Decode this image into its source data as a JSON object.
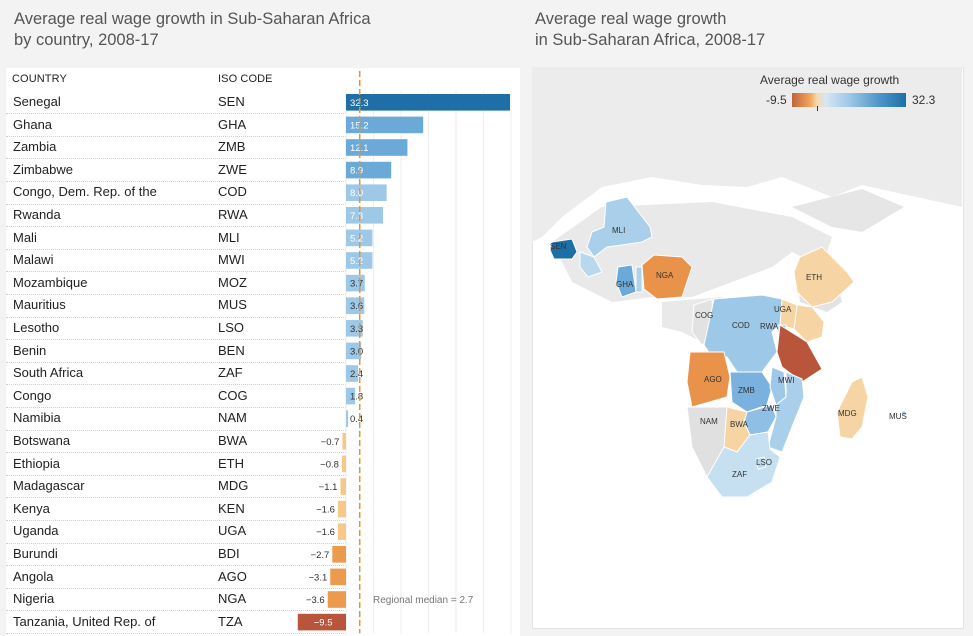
{
  "left_title_line1": "Average real wage growth in Sub-Saharan Africa",
  "left_title_line2": "by country, 2008-17",
  "right_title_line1": "Average real wage growth",
  "right_title_line2": "in Sub-Saharan Africa, 2008-17",
  "headers": {
    "country": "COUNTRY",
    "iso": "ISO CODE"
  },
  "median_label": "Regional median = 2.7",
  "legend": {
    "title": "Average real wage growth",
    "min": "-9.5",
    "max": "32.3"
  },
  "colors": {
    "positive_strong": "#1d6fa5",
    "positive_light": "#9ec8e8",
    "negative": "#f2b26b",
    "negative_strong": "#b8553a",
    "median_line": "#e8923a"
  },
  "chart_data": {
    "type": "bar",
    "title": "Average real wage growth in Sub-Saharan Africa by country, 2008-17",
    "orientation": "horizontal",
    "median": 2.7,
    "rows": [
      {
        "country": "Senegal",
        "iso": "SEN",
        "value": 32.3,
        "label": "32.3"
      },
      {
        "country": "Ghana",
        "iso": "GHA",
        "value": 15.2,
        "label": "15.2"
      },
      {
        "country": "Zambia",
        "iso": "ZMB",
        "value": 12.1,
        "label": "12.1"
      },
      {
        "country": "Zimbabwe",
        "iso": "ZWE",
        "value": 8.9,
        "label": "8.9"
      },
      {
        "country": "Congo, Dem. Rep. of the",
        "iso": "COD",
        "value": 8.0,
        "label": "8.0"
      },
      {
        "country": "Rwanda",
        "iso": "RWA",
        "value": 7.3,
        "label": "7.3"
      },
      {
        "country": "Mali",
        "iso": "MLI",
        "value": 5.2,
        "label": "5.2"
      },
      {
        "country": "Malawi",
        "iso": "MWI",
        "value": 5.2,
        "label": "5.2"
      },
      {
        "country": "Mozambique",
        "iso": "MOZ",
        "value": 3.7,
        "label": "3.7"
      },
      {
        "country": "Mauritius",
        "iso": "MUS",
        "value": 3.6,
        "label": "3.6"
      },
      {
        "country": "Lesotho",
        "iso": "LSO",
        "value": 3.3,
        "label": "3.3"
      },
      {
        "country": "Benin",
        "iso": "BEN",
        "value": 3.0,
        "label": "3.0"
      },
      {
        "country": "South Africa",
        "iso": "ZAF",
        "value": 2.4,
        "label": "2.4"
      },
      {
        "country": "Congo",
        "iso": "COG",
        "value": 1.8,
        "label": "1.8"
      },
      {
        "country": "Namibia",
        "iso": "NAM",
        "value": 0.4,
        "label": "0.4"
      },
      {
        "country": "Botswana",
        "iso": "BWA",
        "value": -0.7,
        "label": "−0.7"
      },
      {
        "country": "Ethiopia",
        "iso": "ETH",
        "value": -0.8,
        "label": "−0.8"
      },
      {
        "country": "Madagascar",
        "iso": "MDG",
        "value": -1.1,
        "label": "−1.1"
      },
      {
        "country": "Kenya",
        "iso": "KEN",
        "value": -1.6,
        "label": "−1.6"
      },
      {
        "country": "Uganda",
        "iso": "UGA",
        "value": -1.6,
        "label": "−1.6"
      },
      {
        "country": "Burundi",
        "iso": "BDI",
        "value": -2.7,
        "label": "−2.7"
      },
      {
        "country": "Angola",
        "iso": "AGO",
        "value": -3.1,
        "label": "−3.1"
      },
      {
        "country": "Nigeria",
        "iso": "NGA",
        "value": -3.6,
        "label": "−3.6"
      },
      {
        "country": "Tanzania, United Rep. of",
        "iso": "TZA",
        "value": -9.5,
        "label": "−9.5"
      }
    ]
  },
  "map": {
    "labels": [
      "SEN",
      "MLI",
      "GHA",
      "NGA",
      "ETH",
      "UGA",
      "COG",
      "COD",
      "RWA",
      "AGO",
      "ZMB",
      "MWI",
      "NAM",
      "BWA",
      "ZWE",
      "MDG",
      "MUS",
      "LSO",
      "ZAF"
    ]
  }
}
